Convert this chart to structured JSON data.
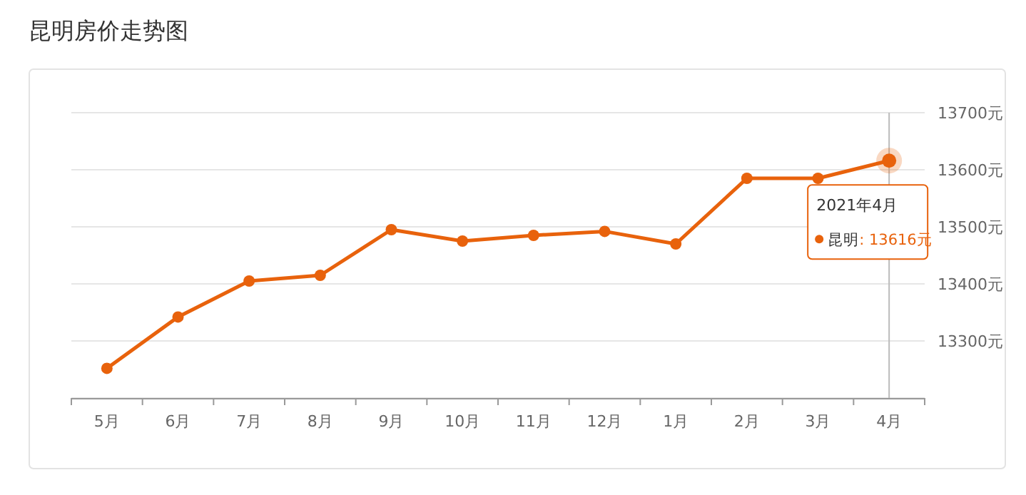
{
  "chart_data": {
    "type": "line",
    "title": "昆明房价走势图",
    "categories": [
      "5月",
      "6月",
      "7月",
      "8月",
      "9月",
      "10月",
      "11月",
      "12月",
      "1月",
      "2月",
      "3月",
      "4月"
    ],
    "series": [
      {
        "name": "昆明",
        "color": "#e8620c",
        "values": [
          13252,
          13342,
          13405,
          13415,
          13495,
          13475,
          13485,
          13492,
          13470,
          13585,
          13585,
          13616
        ]
      }
    ],
    "ylim": [
      13200,
      13700
    ],
    "yticks": [
      {
        "value": 13200,
        "label": null
      },
      {
        "value": 13300,
        "label": "13300元"
      },
      {
        "value": 13400,
        "label": "13400元"
      },
      {
        "value": 13500,
        "label": "13500元"
      },
      {
        "value": 13600,
        "label": "13600元"
      },
      {
        "value": 13700,
        "label": "13700元"
      }
    ],
    "grid": "y",
    "marker": "circle",
    "line_style": "solid",
    "legend": "right",
    "ref_lines": [
      {
        "axis": "x",
        "value": "4月",
        "color": "#bbbbbb"
      }
    ],
    "annotations": [
      {
        "text": "2021年4月",
        "x": "4月",
        "y": 13616
      },
      ":  13616元"
    ]
  }
}
